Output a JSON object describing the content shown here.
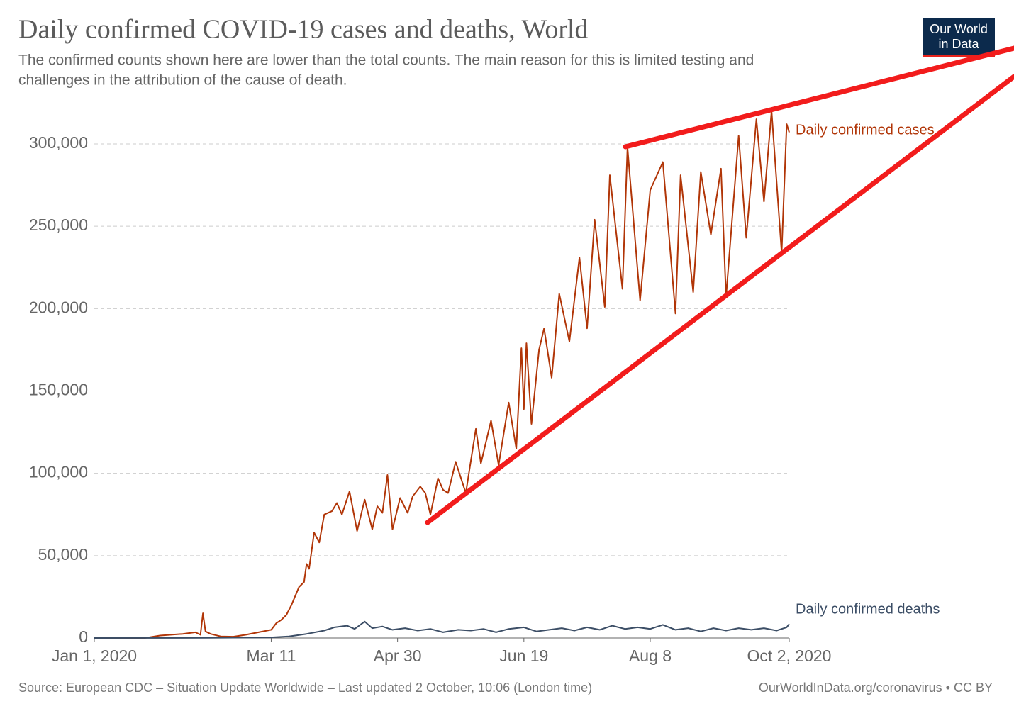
{
  "chart_data": {
    "type": "line",
    "title": "Daily confirmed COVID-19 cases and deaths, World",
    "subtitle": [
      "The confirmed counts shown here are lower than the total counts. The main reason for this is limited testing and",
      "challenges in the attribution of the cause of death."
    ],
    "logo": [
      "Our World",
      "in Data"
    ],
    "source": "Source: European CDC – Situation Update Worldwide – Last updated 2 October, 10:06 (London time)",
    "credit": "OurWorldInData.org/coronavirus • CC BY",
    "xlim": [
      "2020-01-01",
      "2020-10-02"
    ],
    "xticks": [
      {
        "value": "2020-01-01",
        "label": "Jan 1, 2020"
      },
      {
        "value": "2020-03-11",
        "label": "Mar 11"
      },
      {
        "value": "2020-04-30",
        "label": "Apr 30"
      },
      {
        "value": "2020-06-19",
        "label": "Jun 19"
      },
      {
        "value": "2020-08-08",
        "label": "Aug 8"
      },
      {
        "value": "2020-10-02",
        "label": "Oct 2, 2020"
      }
    ],
    "ylim": [
      0,
      300000
    ],
    "yticks": [
      0,
      {
        "value": 50000,
        "label": "50,000"
      },
      {
        "value": 100000,
        "label": "100,000"
      },
      {
        "value": 150000,
        "label": "150,000"
      },
      {
        "value": 200000,
        "label": "200,000"
      },
      {
        "value": 250000,
        "label": "250,000"
      },
      {
        "value": 300000,
        "label": "300,000"
      }
    ],
    "grid": true,
    "series": [
      {
        "name": "Daily confirmed cases",
        "color": "#b13507",
        "x": [
          "2020-01-01",
          "2020-01-21",
          "2020-01-27",
          "2020-02-05",
          "2020-02-10",
          "2020-02-12",
          "2020-02-13",
          "2020-02-14",
          "2020-02-16",
          "2020-02-20",
          "2020-02-25",
          "2020-03-01",
          "2020-03-06",
          "2020-03-11",
          "2020-03-13",
          "2020-03-15",
          "2020-03-17",
          "2020-03-19",
          "2020-03-22",
          "2020-03-24",
          "2020-03-25",
          "2020-03-26",
          "2020-03-28",
          "2020-03-30",
          "2020-04-01",
          "2020-04-04",
          "2020-04-06",
          "2020-04-08",
          "2020-04-11",
          "2020-04-14",
          "2020-04-17",
          "2020-04-20",
          "2020-04-22",
          "2020-04-24",
          "2020-04-26",
          "2020-04-28",
          "2020-05-01",
          "2020-05-04",
          "2020-05-06",
          "2020-05-09",
          "2020-05-11",
          "2020-05-13",
          "2020-05-16",
          "2020-05-18",
          "2020-05-20",
          "2020-05-23",
          "2020-05-27",
          "2020-05-31",
          "2020-06-02",
          "2020-06-06",
          "2020-06-09",
          "2020-06-13",
          "2020-06-16",
          "2020-06-18",
          "2020-06-19",
          "2020-06-20",
          "2020-06-22",
          "2020-06-25",
          "2020-06-27",
          "2020-06-30",
          "2020-07-03",
          "2020-07-07",
          "2020-07-11",
          "2020-07-14",
          "2020-07-17",
          "2020-07-21",
          "2020-07-23",
          "2020-07-28",
          "2020-07-30",
          "2020-08-04",
          "2020-08-08",
          "2020-08-13",
          "2020-08-18",
          "2020-08-20",
          "2020-08-25",
          "2020-08-28",
          "2020-09-01",
          "2020-09-05",
          "2020-09-07",
          "2020-09-12",
          "2020-09-15",
          "2020-09-19",
          "2020-09-22",
          "2020-09-25",
          "2020-09-29",
          "2020-10-01",
          "2020-10-02"
        ],
        "values": [
          0,
          0,
          1500,
          2500,
          3500,
          2000,
          15000,
          4000,
          2500,
          1000,
          800,
          2000,
          3500,
          5000,
          9000,
          11000,
          14000,
          20000,
          31000,
          34000,
          45000,
          42000,
          64000,
          58000,
          75000,
          77000,
          82000,
          75000,
          89000,
          65000,
          84000,
          66000,
          80000,
          76000,
          99000,
          66000,
          85000,
          76000,
          86000,
          92000,
          88000,
          75000,
          97000,
          90000,
          88000,
          107000,
          88000,
          127000,
          106000,
          132000,
          105000,
          143000,
          115000,
          176000,
          139000,
          179000,
          130000,
          175000,
          188000,
          158000,
          209000,
          180000,
          231000,
          188000,
          254000,
          201000,
          281000,
          212000,
          298000,
          205000,
          272000,
          289000,
          197000,
          281000,
          210000,
          283000,
          245000,
          285000,
          207000,
          305000,
          243000,
          315000,
          265000,
          320000,
          234000,
          312000,
          307000
        ]
      },
      {
        "name": "Daily confirmed deaths",
        "color": "#3c4e66",
        "x": [
          "2020-01-01",
          "2020-02-15",
          "2020-03-11",
          "2020-03-18",
          "2020-03-25",
          "2020-04-01",
          "2020-04-05",
          "2020-04-10",
          "2020-04-13",
          "2020-04-17",
          "2020-04-20",
          "2020-04-24",
          "2020-04-28",
          "2020-05-03",
          "2020-05-08",
          "2020-05-13",
          "2020-05-18",
          "2020-05-24",
          "2020-05-29",
          "2020-06-03",
          "2020-06-08",
          "2020-06-13",
          "2020-06-19",
          "2020-06-24",
          "2020-06-29",
          "2020-07-04",
          "2020-07-09",
          "2020-07-14",
          "2020-07-19",
          "2020-07-24",
          "2020-07-29",
          "2020-08-03",
          "2020-08-08",
          "2020-08-13",
          "2020-08-18",
          "2020-08-23",
          "2020-08-28",
          "2020-09-02",
          "2020-09-07",
          "2020-09-12",
          "2020-09-17",
          "2020-09-22",
          "2020-09-27",
          "2020-10-01",
          "2020-10-02"
        ],
        "values": [
          0,
          100,
          400,
          1000,
          2500,
          4500,
          6500,
          7500,
          5500,
          10000,
          6000,
          7000,
          5000,
          6000,
          4500,
          5500,
          3500,
          5000,
          4500,
          5500,
          3500,
          5500,
          6500,
          4000,
          5000,
          6000,
          4500,
          6500,
          5000,
          7500,
          5500,
          6500,
          5500,
          8000,
          5000,
          6000,
          4000,
          6000,
          4500,
          6000,
          5000,
          6000,
          4500,
          6500,
          8500
        ]
      }
    ]
  }
}
